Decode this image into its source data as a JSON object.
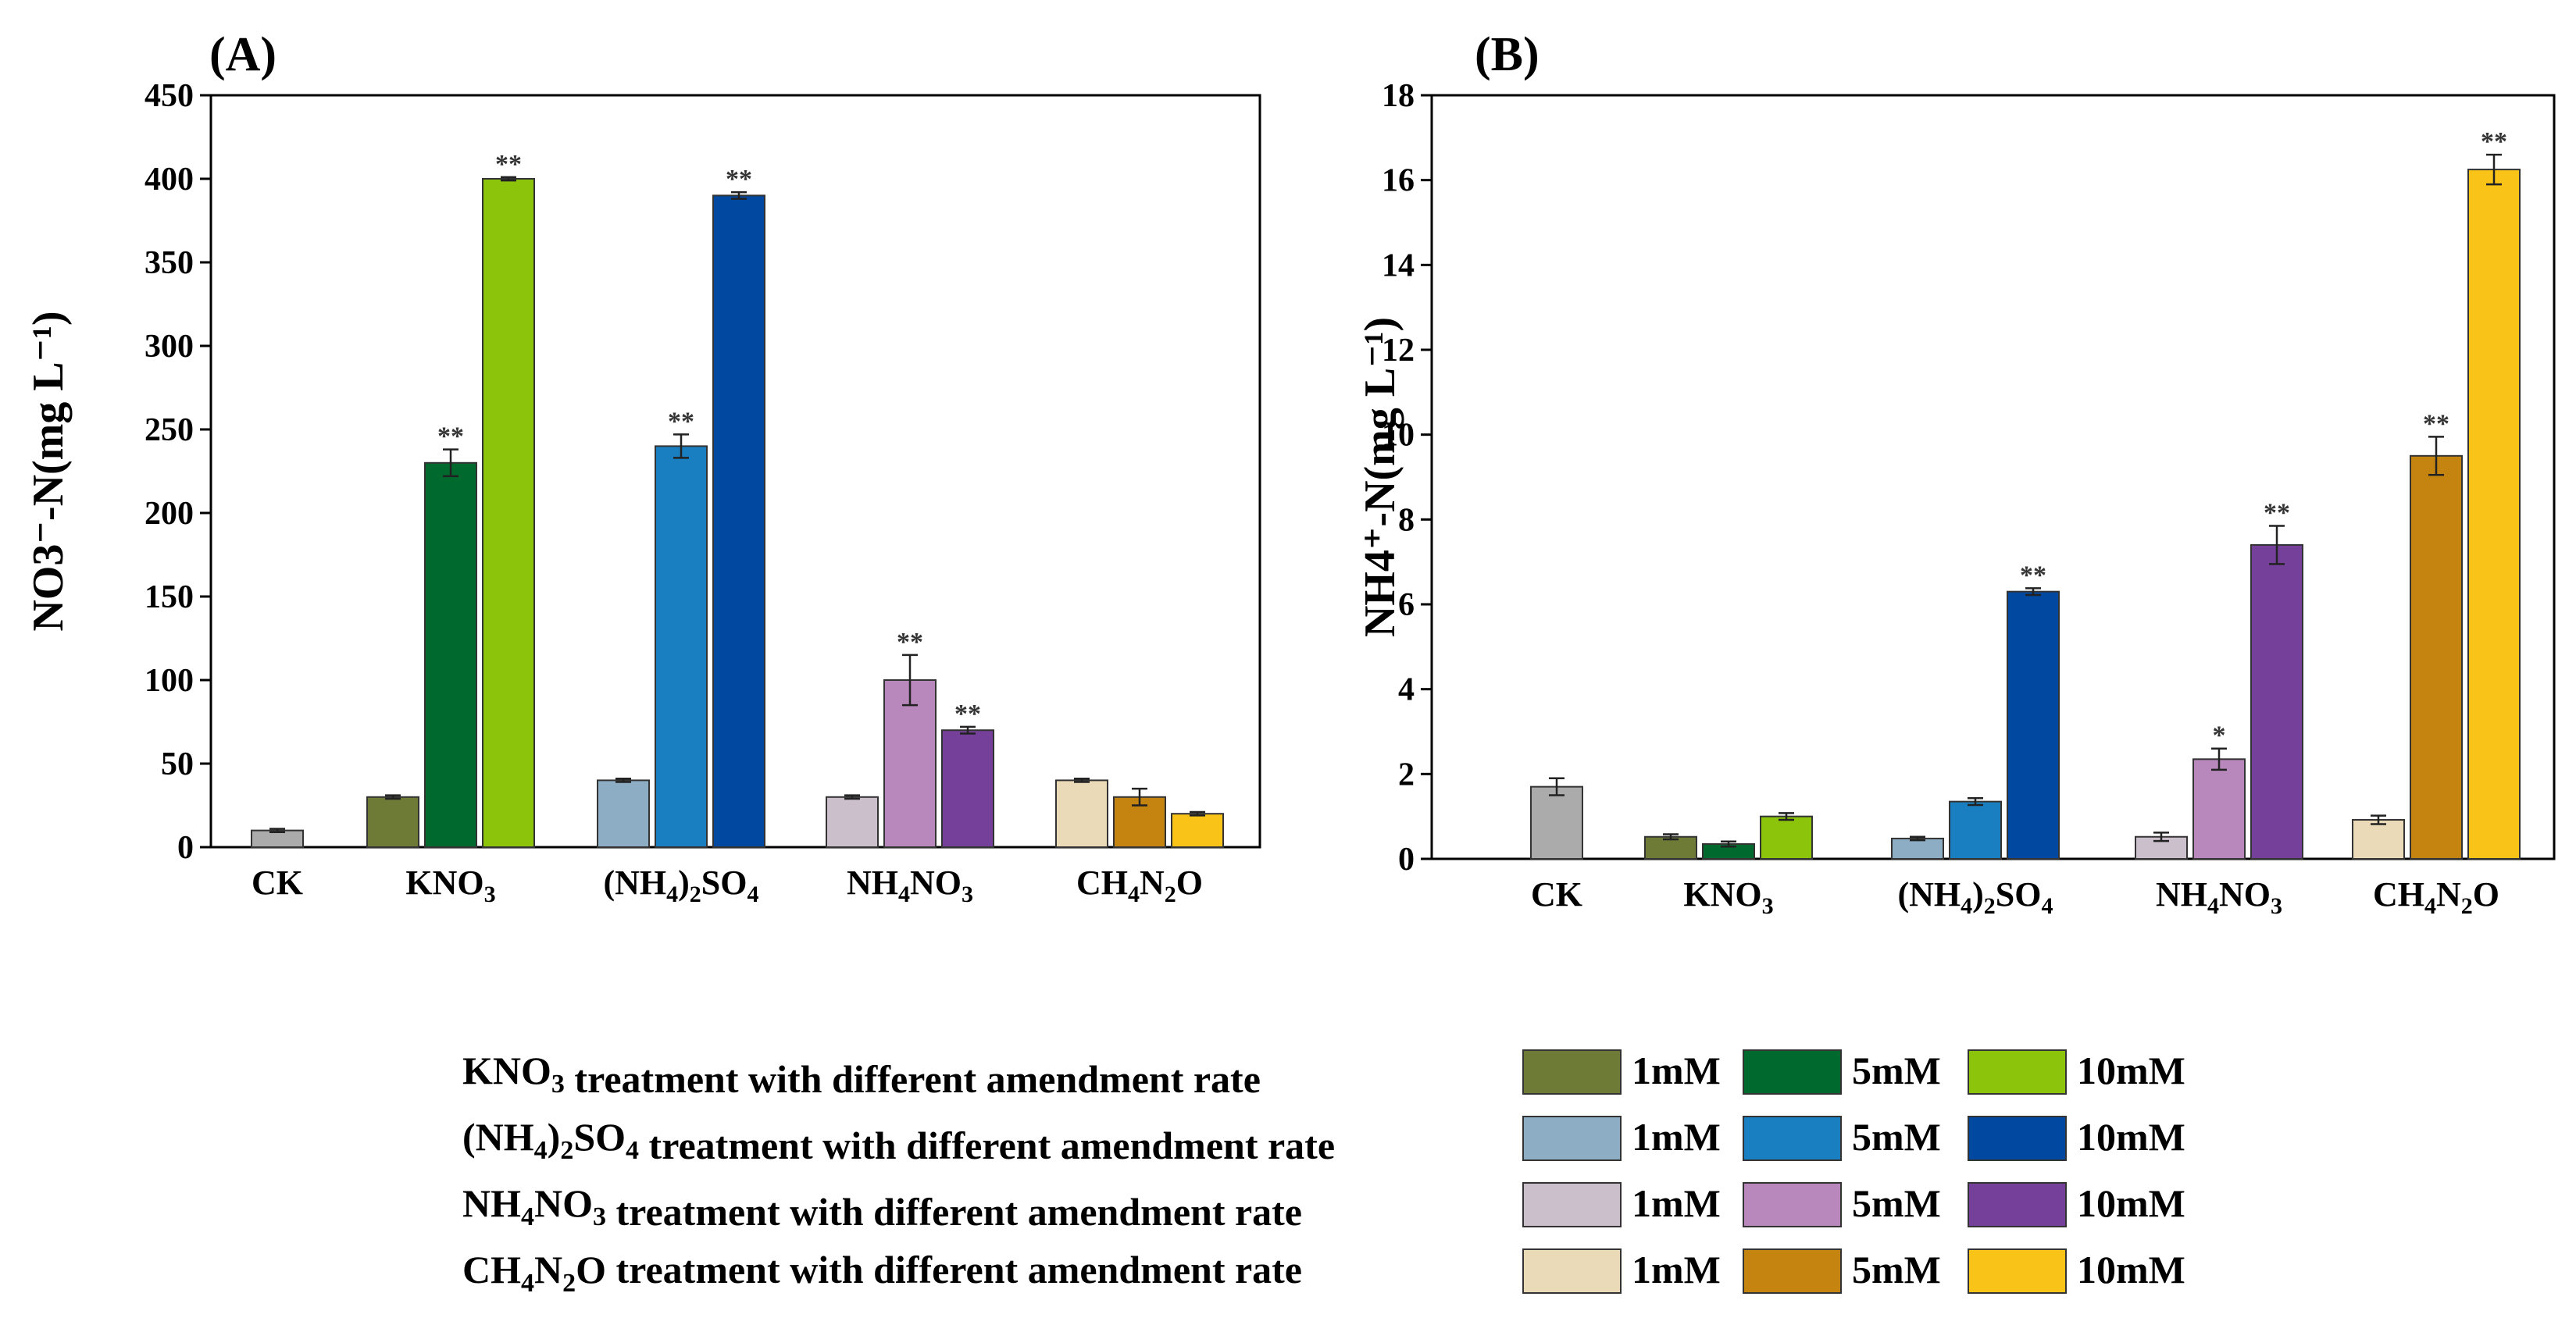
{
  "chart_data": [
    {
      "type": "bar",
      "panel_label": "(A)",
      "ylabel": "NO3⁻-N(mg L⁻¹)",
      "ylim": [
        0,
        450
      ],
      "yticks": [
        "0",
        "50",
        "100",
        "150",
        "200",
        "250",
        "300",
        "350",
        "400",
        "450"
      ],
      "groups": [
        {
          "label": "CK",
          "bars": [
            {
              "value": 10,
              "err": 1,
              "sig": "",
              "color": "#ababab"
            }
          ]
        },
        {
          "label": "KNO3",
          "bars": [
            {
              "value": 30,
              "err": 1,
              "sig": "",
              "color": "#6d7b37"
            },
            {
              "value": 230,
              "err": 8,
              "sig": "**",
              "color": "#00692e"
            },
            {
              "value": 400,
              "err": 1,
              "sig": "**",
              "color": "#8cc30b"
            }
          ]
        },
        {
          "label": "(NH4)2SO4",
          "bars": [
            {
              "value": 40,
              "err": 1,
              "sig": "",
              "color": "#8cadc4"
            },
            {
              "value": 240,
              "err": 7,
              "sig": "**",
              "color": "#1a7fc1"
            },
            {
              "value": 390,
              "err": 2,
              "sig": "**",
              "color": "#0048a0"
            }
          ]
        },
        {
          "label": "NH4NO3",
          "bars": [
            {
              "value": 30,
              "err": 1,
              "sig": "",
              "color": "#cbbfcb"
            },
            {
              "value": 100,
              "err": 15,
              "sig": "**",
              "color": "#b887bb"
            },
            {
              "value": 70,
              "err": 2,
              "sig": "**",
              "color": "#74409a"
            }
          ]
        },
        {
          "label": "CH4N2O",
          "bars": [
            {
              "value": 40,
              "err": 1,
              "sig": "",
              "color": "#eadab8"
            },
            {
              "value": 30,
              "err": 5,
              "sig": "",
              "color": "#c5840f"
            },
            {
              "value": 20,
              "err": 1,
              "sig": "",
              "color": "#f9c318"
            }
          ]
        }
      ]
    },
    {
      "type": "bar",
      "panel_label": "(B)",
      "ylabel": "NH4⁺-N(mg L⁻¹)",
      "ylim": [
        0,
        18
      ],
      "yticks": [
        "0",
        "2",
        "4",
        "6",
        "8",
        "10",
        "12",
        "14",
        "16",
        "18"
      ],
      "groups": [
        {
          "label": "CK",
          "bars": [
            {
              "value": 1.7,
              "err": 0.2,
              "sig": "",
              "color": "#ababab"
            }
          ]
        },
        {
          "label": "KNO3",
          "bars": [
            {
              "value": 0.52,
              "err": 0.06,
              "sig": "",
              "color": "#6d7b37"
            },
            {
              "value": 0.35,
              "err": 0.06,
              "sig": "",
              "color": "#00692e"
            },
            {
              "value": 1.0,
              "err": 0.08,
              "sig": "",
              "color": "#8cc30b"
            }
          ]
        },
        {
          "label": "(NH4)2SO4",
          "bars": [
            {
              "value": 0.48,
              "err": 0.04,
              "sig": "",
              "color": "#8cadc4"
            },
            {
              "value": 1.35,
              "err": 0.08,
              "sig": "",
              "color": "#1a7fc1"
            },
            {
              "value": 6.3,
              "err": 0.08,
              "sig": "**",
              "color": "#0048a0"
            }
          ]
        },
        {
          "label": "NH4NO3",
          "bars": [
            {
              "value": 0.52,
              "err": 0.1,
              "sig": "",
              "color": "#cbbfcb"
            },
            {
              "value": 2.35,
              "err": 0.25,
              "sig": "*",
              "color": "#b887bb"
            },
            {
              "value": 7.4,
              "err": 0.45,
              "sig": "**",
              "color": "#74409a"
            }
          ]
        },
        {
          "label": "CH4N2O",
          "bars": [
            {
              "value": 0.92,
              "err": 0.1,
              "sig": "",
              "color": "#eadab8"
            },
            {
              "value": 9.5,
              "err": 0.45,
              "sig": "**",
              "color": "#c5840f"
            },
            {
              "value": 16.25,
              "err": 0.35,
              "sig": "**",
              "color": "#f9c318"
            }
          ]
        }
      ]
    }
  ],
  "legend": {
    "rows": [
      {
        "compound": "KNO3",
        "text": "treatment with different amendment rate",
        "colors": [
          "#6d7b37",
          "#00692e",
          "#8cc30b"
        ]
      },
      {
        "compound": "(NH4)2SO4",
        "text": "treatment with different amendment rate",
        "colors": [
          "#8cadc4",
          "#1a7fc1",
          "#0048a0"
        ]
      },
      {
        "compound": "NH4NO3",
        "text": "treatment with different amendment rate",
        "colors": [
          "#cbbfcb",
          "#b887bb",
          "#74409a"
        ]
      },
      {
        "compound": "CH4N2O",
        "text": "treatment with different amendment rate",
        "colors": [
          "#eadab8",
          "#c5840f",
          "#f9c318"
        ]
      }
    ],
    "rates": [
      "1mM",
      "5mM",
      "10mM"
    ]
  }
}
